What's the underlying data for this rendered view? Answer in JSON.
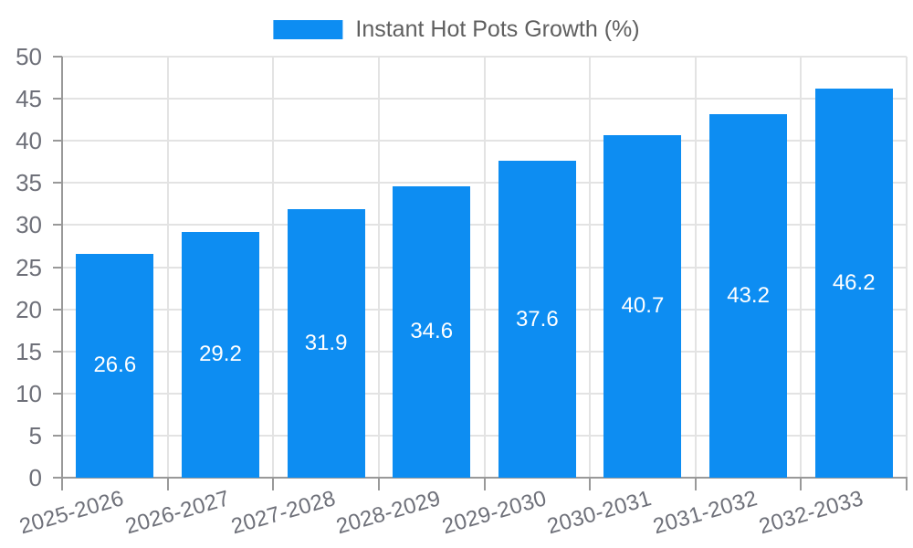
{
  "chart_data": {
    "type": "bar",
    "title": "",
    "legend": "Instant Hot Pots Growth (%)",
    "legend_position": "top",
    "categories": [
      "2025-2026",
      "2026-2027",
      "2027-2028",
      "2028-2029",
      "2029-2030",
      "2030-2031",
      "2031-2032",
      "2032-2033"
    ],
    "series": [
      {
        "name": "Instant Hot Pots Growth (%)",
        "values": [
          26.6,
          29.2,
          31.9,
          34.6,
          37.6,
          40.7,
          43.2,
          46.2
        ]
      }
    ],
    "value_labels": [
      "26.6",
      "29.2",
      "31.9",
      "34.6",
      "37.6",
      "40.7",
      "43.2",
      "46.2"
    ],
    "xlabel": "",
    "ylabel": "",
    "ylim": [
      0,
      50
    ],
    "ytick_step": 5,
    "ytick_labels": [
      "0",
      "5",
      "10",
      "15",
      "20",
      "25",
      "30",
      "35",
      "40",
      "45",
      "50"
    ],
    "grid": true,
    "colors": {
      "bar": "#0d8df2",
      "grid_line": "#e3e3e3",
      "axis_line": "#999999",
      "tick_label": "#6e7079",
      "legend_text": "#5f5f5f",
      "value_label": "#ffffff",
      "background": "#ffffff"
    }
  }
}
